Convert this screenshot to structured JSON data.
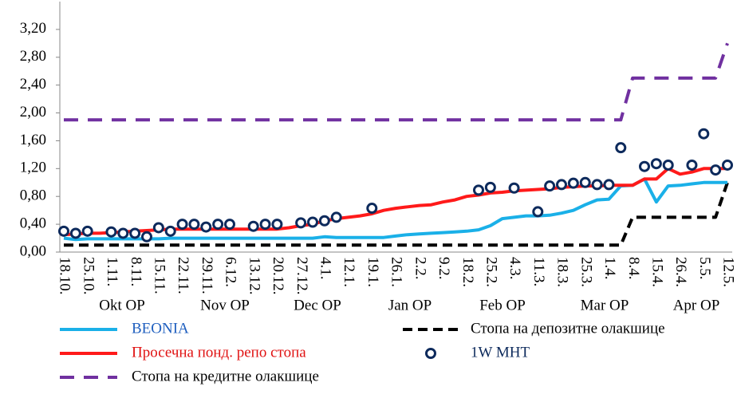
{
  "chart_data": {
    "type": "line",
    "categories": [
      "18.10.",
      null,
      "25.10.",
      null,
      "1.11.",
      null,
      "8.11.",
      null,
      "15.11.",
      null,
      "22.11.",
      null,
      "29.11.",
      null,
      "6.12.",
      null,
      "13.12.",
      null,
      "20.12.",
      null,
      "27.12.",
      null,
      "4.1.",
      null,
      "12.1.",
      null,
      "19.1.",
      null,
      "26.1.",
      null,
      "2.2.",
      null,
      "9.2.",
      null,
      "18.2.",
      null,
      "25.2.",
      null,
      "4.3.",
      null,
      "11.3.",
      null,
      "18.3.",
      null,
      "25.3.",
      null,
      "1.4.",
      null,
      "8.4.",
      null,
      "15.4.",
      null,
      "26.4.",
      null,
      "5.5.",
      null,
      "12.5."
    ],
    "period_labels": [
      "Okt OP",
      "Nov OP",
      "Dec OP",
      "Jan OP",
      "Feb OP",
      "Mar OP",
      "Apr OP"
    ],
    "ylim": [
      0,
      3.6
    ],
    "yticks": [
      {
        "value": 0,
        "label": "0,00"
      },
      {
        "value": 0.4,
        "label": "0,40"
      },
      {
        "value": 0.8,
        "label": "0,80"
      },
      {
        "value": 1.2,
        "label": "1,20"
      },
      {
        "value": 1.6,
        "label": "1,60"
      },
      {
        "value": 2,
        "label": "2,00"
      },
      {
        "value": 2.4,
        "label": "2,40"
      },
      {
        "value": 2.8,
        "label": "2,80"
      },
      {
        "value": 3.2,
        "label": "3,20"
      }
    ],
    "series": [
      {
        "name": "BEONIA",
        "color": "#1ab0e8",
        "legend_color": "#1f5fbf",
        "style": "solid",
        "values": [
          0.2,
          0.18,
          0.19,
          0.19,
          0.19,
          0.19,
          0.19,
          0.19,
          0.19,
          0.2,
          0.2,
          0.2,
          0.2,
          0.2,
          0.2,
          0.2,
          0.2,
          0.2,
          0.2,
          0.2,
          0.2,
          0.2,
          0.22,
          0.21,
          0.21,
          0.21,
          0.21,
          0.21,
          0.23,
          0.25,
          0.26,
          0.27,
          0.28,
          0.29,
          0.3,
          0.32,
          0.38,
          0.48,
          0.5,
          0.52,
          0.52,
          0.53,
          0.56,
          0.6,
          0.68,
          0.75,
          0.76,
          0.95,
          0.96,
          1.05,
          0.72,
          0.95,
          0.96,
          0.98,
          1.0,
          1.0,
          1.0
        ]
      },
      {
        "name": "Просечна понд. репо стопа",
        "color": "#ff1a1a",
        "legend_color": "#e01010",
        "style": "solid",
        "values": [
          0.25,
          0.26,
          0.27,
          0.27,
          0.28,
          0.29,
          0.3,
          0.31,
          0.32,
          0.33,
          0.33,
          0.33,
          0.33,
          0.33,
          0.33,
          0.33,
          0.33,
          0.33,
          0.33,
          0.35,
          0.38,
          0.4,
          0.45,
          0.48,
          0.5,
          0.52,
          0.55,
          0.6,
          0.63,
          0.65,
          0.67,
          0.68,
          0.72,
          0.75,
          0.8,
          0.82,
          0.85,
          0.86,
          0.88,
          0.89,
          0.9,
          0.91,
          0.93,
          0.94,
          0.95,
          0.95,
          0.96,
          0.96,
          0.96,
          1.05,
          1.05,
          1.2,
          1.12,
          1.15,
          1.2,
          1.2,
          1.2
        ]
      },
      {
        "name": "Стопа на кредитне олакшице",
        "color": "#7030a0",
        "legend_color": "#000000",
        "style": "dashed",
        "values": [
          1.9,
          1.9,
          1.9,
          1.9,
          1.9,
          1.9,
          1.9,
          1.9,
          1.9,
          1.9,
          1.9,
          1.9,
          1.9,
          1.9,
          1.9,
          1.9,
          1.9,
          1.9,
          1.9,
          1.9,
          1.9,
          1.9,
          1.9,
          1.9,
          1.9,
          1.9,
          1.9,
          1.9,
          1.9,
          1.9,
          1.9,
          1.9,
          1.9,
          1.9,
          1.9,
          1.9,
          1.9,
          1.9,
          1.9,
          1.9,
          1.9,
          1.9,
          1.9,
          1.9,
          1.9,
          1.9,
          1.9,
          1.9,
          2.5,
          2.5,
          2.5,
          2.5,
          2.5,
          2.5,
          2.5,
          2.5,
          3.0
        ]
      },
      {
        "name": "Стопа на депозитне олакшице",
        "color": "#000000",
        "legend_color": "#000000",
        "style": "dashed",
        "values": [
          0.1,
          0.1,
          0.1,
          0.1,
          0.1,
          0.1,
          0.1,
          0.1,
          0.1,
          0.1,
          0.1,
          0.1,
          0.1,
          0.1,
          0.1,
          0.1,
          0.1,
          0.1,
          0.1,
          0.1,
          0.1,
          0.1,
          0.1,
          0.1,
          0.1,
          0.1,
          0.1,
          0.1,
          0.1,
          0.1,
          0.1,
          0.1,
          0.1,
          0.1,
          0.1,
          0.1,
          0.1,
          0.1,
          0.1,
          0.1,
          0.1,
          0.1,
          0.1,
          0.1,
          0.1,
          0.1,
          0.1,
          0.1,
          0.5,
          0.5,
          0.5,
          0.5,
          0.5,
          0.5,
          0.5,
          0.5,
          1.0
        ]
      },
      {
        "name": "1W MHT",
        "color": "#0d2a5c",
        "legend_color": "#0d2a5c",
        "style": "markers",
        "values": [
          0.3,
          0.27,
          0.3,
          null,
          0.29,
          0.27,
          0.27,
          0.22,
          0.35,
          0.3,
          0.4,
          0.4,
          0.36,
          0.4,
          0.4,
          null,
          0.37,
          0.4,
          0.4,
          null,
          0.42,
          0.43,
          0.45,
          0.5,
          null,
          null,
          0.63,
          null,
          null,
          null,
          null,
          null,
          null,
          null,
          null,
          0.89,
          0.93,
          null,
          0.92,
          null,
          0.58,
          0.95,
          0.97,
          0.99,
          1.0,
          0.97,
          0.97,
          1.5,
          null,
          1.23,
          1.27,
          1.25,
          null,
          1.25,
          1.7,
          1.18,
          1.25
        ]
      }
    ]
  }
}
